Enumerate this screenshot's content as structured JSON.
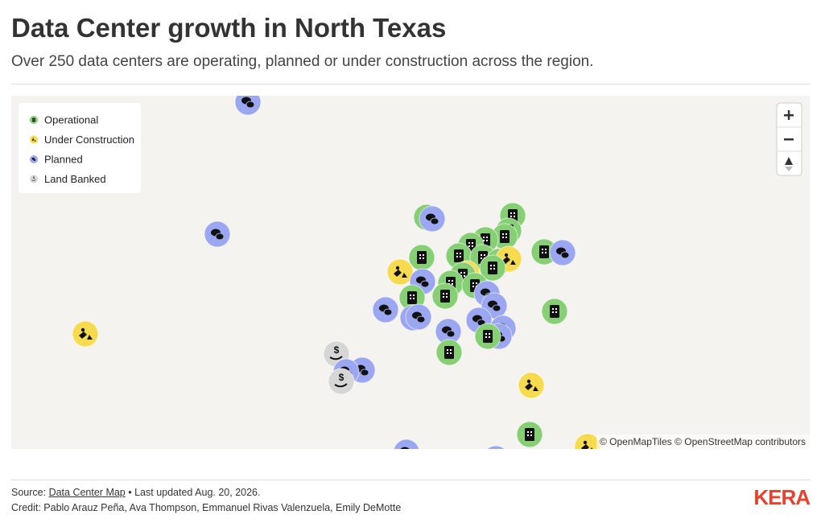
{
  "header": {
    "title": "Data Center growth in North Texas",
    "subtitle": "Over 250 data centers are operating, planned or under construction across the region."
  },
  "map": {
    "legend": [
      "Operational",
      "Under Construction",
      "Planned",
      "Land Banked"
    ],
    "attribution": [
      "© OpenMapTiles",
      "© OpenStreetMap contributors"
    ]
  },
  "footer": {
    "source_label": "Source:",
    "source_link": "Data Center Map",
    "updated": "• Last updated Aug. 20, 2026.",
    "credit": "Credit: Pablo Arauz Peña, Ava Thompson, Emmanuel Rivas Valenzuela, Emily DeMotte",
    "logo": "KERA"
  }
}
